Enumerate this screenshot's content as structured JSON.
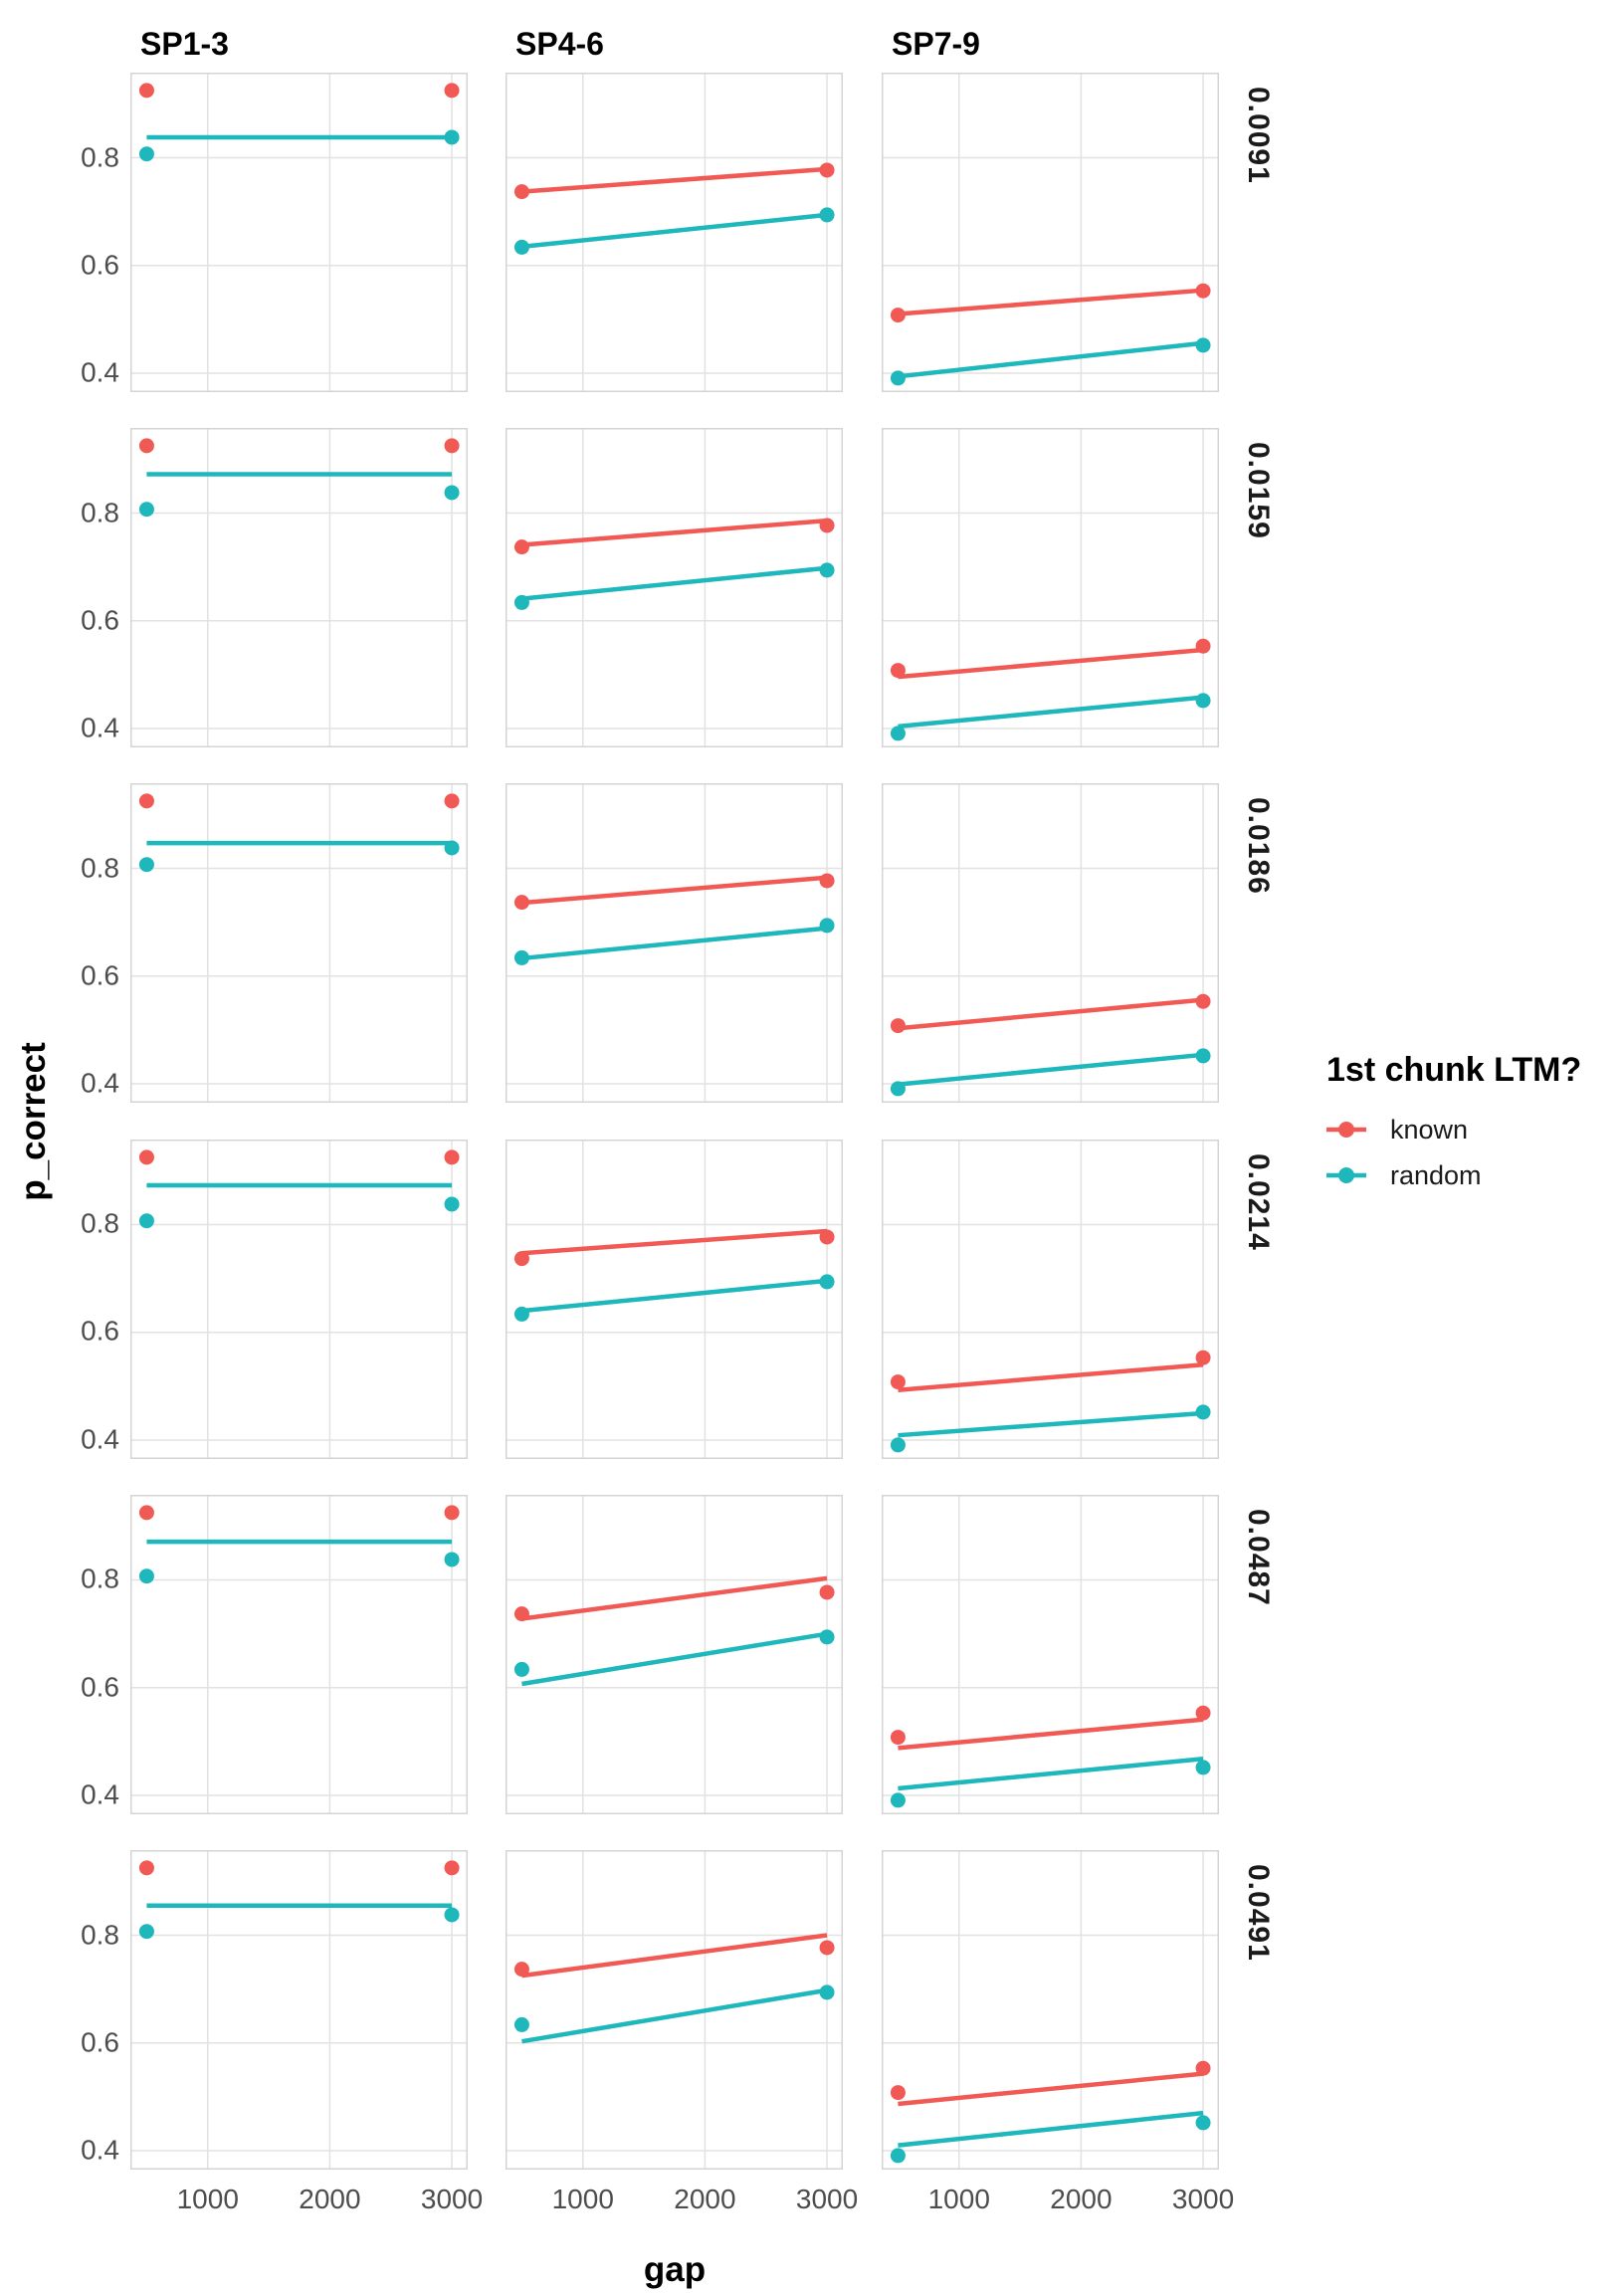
{
  "figure": {
    "x_axis_title": "gap",
    "y_axis_title": "p_correct",
    "legend": {
      "title": "1st chunk LTM?",
      "items": [
        {
          "label": "known",
          "color": "#F15A54"
        },
        {
          "label": "random",
          "color": "#1EB7BB"
        }
      ]
    }
  },
  "chart_data": {
    "type": "scatter",
    "title": "",
    "xlabel": "gap",
    "ylabel": "p_correct",
    "legend_title": "1st chunk LTM?",
    "legend_position": "right",
    "grid": "major-only",
    "facet_columns": [
      "SP1-3",
      "SP4-6",
      "SP7-9"
    ],
    "facet_rows": [
      "0.0091",
      "0.0159",
      "0.0186",
      "0.0214",
      "0.0487",
      "0.0491"
    ],
    "x": {
      "ticks": [
        "1000",
        "2000",
        "3000"
      ],
      "tick_values": [
        1000,
        2000,
        3000
      ],
      "domain": [
        366,
        3130
      ]
    },
    "y": {
      "ticks": [
        "0.8",
        "0.6",
        "0.4"
      ],
      "tick_values": [
        0.8,
        0.6,
        0.4
      ],
      "domain": [
        0.365,
        0.958
      ]
    },
    "series": [
      {
        "name": "known",
        "color": "#F15A54"
      },
      {
        "name": "random",
        "color": "#1EB7BB"
      }
    ],
    "point_x": [
      500,
      3000
    ],
    "points": {
      "SP1-3": {
        "known": [
          0.925,
          0.925
        ],
        "random": [
          0.807,
          0.838
        ]
      },
      "SP4-6": {
        "known": [
          0.737,
          0.777
        ],
        "random": [
          0.634,
          0.694
        ]
      },
      "SP7-9": {
        "known": [
          0.508,
          0.553
        ],
        "random": [
          0.391,
          0.452
        ]
      }
    },
    "lines": [
      {
        "SP1-3": {
          "known": null,
          "random": [
            0.838,
            0.838
          ]
        },
        "SP4-6": {
          "known": [
            0.737,
            0.779
          ],
          "random": [
            0.635,
            0.694
          ]
        },
        "SP7-9": {
          "known": [
            0.51,
            0.554
          ],
          "random": [
            0.394,
            0.456
          ]
        }
      },
      {
        "SP1-3": {
          "known": null,
          "random": [
            0.872,
            0.872
          ]
        },
        "SP4-6": {
          "known": [
            0.741,
            0.786
          ],
          "random": [
            0.641,
            0.698
          ]
        },
        "SP7-9": {
          "known": [
            0.496,
            0.546
          ],
          "random": [
            0.404,
            0.458
          ]
        }
      },
      {
        "SP1-3": {
          "known": null,
          "random": [
            0.847,
            0.847
          ]
        },
        "SP4-6": {
          "known": [
            0.736,
            0.783
          ],
          "random": [
            0.633,
            0.689
          ]
        },
        "SP7-9": {
          "known": [
            0.503,
            0.556
          ],
          "random": [
            0.399,
            0.454
          ]
        }
      },
      {
        "SP1-3": {
          "known": null,
          "random": [
            0.873,
            0.873
          ]
        },
        "SP4-6": {
          "known": [
            0.747,
            0.788
          ],
          "random": [
            0.64,
            0.696
          ]
        },
        "SP7-9": {
          "known": [
            0.493,
            0.54
          ],
          "random": [
            0.409,
            0.45
          ]
        }
      },
      {
        "SP1-3": {
          "known": null,
          "random": [
            0.871,
            0.871
          ]
        },
        "SP4-6": {
          "known": [
            0.728,
            0.803
          ],
          "random": [
            0.607,
            0.7
          ]
        },
        "SP7-9": {
          "known": [
            0.488,
            0.541
          ],
          "random": [
            0.413,
            0.468
          ]
        }
      },
      {
        "SP1-3": {
          "known": null,
          "random": [
            0.855,
            0.855
          ]
        },
        "SP4-6": {
          "known": [
            0.725,
            0.8
          ],
          "random": [
            0.603,
            0.698
          ]
        },
        "SP7-9": {
          "known": [
            0.487,
            0.543
          ],
          "random": [
            0.41,
            0.47
          ]
        }
      }
    ],
    "colors": {
      "grid": "#E2E2E2",
      "panel_border": "#D4D4D4",
      "tick_text": "#4D4D4D",
      "text": "#000000",
      "background": "#FFFFFF"
    }
  }
}
